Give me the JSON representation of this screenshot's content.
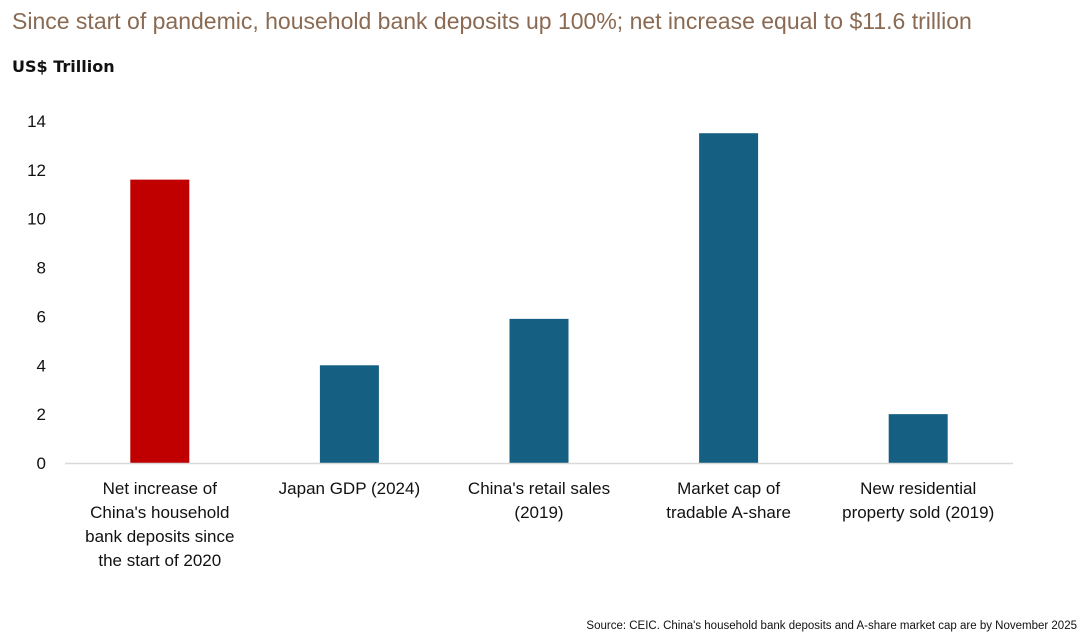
{
  "title": "Since start of pandemic, household bank deposits up 100%; net increase equal to $11.6 trillion",
  "unit_label": "US$ Trillion",
  "source": "Source: CEIC. China's household bank deposits and A-share market cap are by November 2025",
  "colors": {
    "highlight": "#c00000",
    "bar": "#156082",
    "axis": "#d9d9d9",
    "title": "#8a6a52"
  },
  "chart_data": {
    "type": "bar",
    "title": "Since start of pandemic, household bank deposits up 100%; net increase equal to $11.6 trillion",
    "ylabel": "US$ Trillion",
    "xlabel": "",
    "ylim": [
      0,
      14
    ],
    "yticks": [
      0,
      2,
      4,
      6,
      8,
      10,
      12,
      14
    ],
    "grid": false,
    "categories": [
      "Net increase of China's household bank deposits since the start of 2020",
      "Japan GDP (2024)",
      "China's retail sales (2019)",
      "Market cap of tradable A-share",
      "New residential property sold (2019)"
    ],
    "category_lines": [
      [
        "Net increase of",
        "China's household",
        "bank deposits since",
        "the start of 2020"
      ],
      [
        "Japan GDP (2024)"
      ],
      [
        "China's retail sales",
        "(2019)"
      ],
      [
        "Market cap of",
        "tradable A-share"
      ],
      [
        "New residential",
        "property sold (2019)"
      ]
    ],
    "values": [
      11.6,
      4.0,
      5.9,
      13.5,
      2.0
    ],
    "highlight_index": 0
  }
}
